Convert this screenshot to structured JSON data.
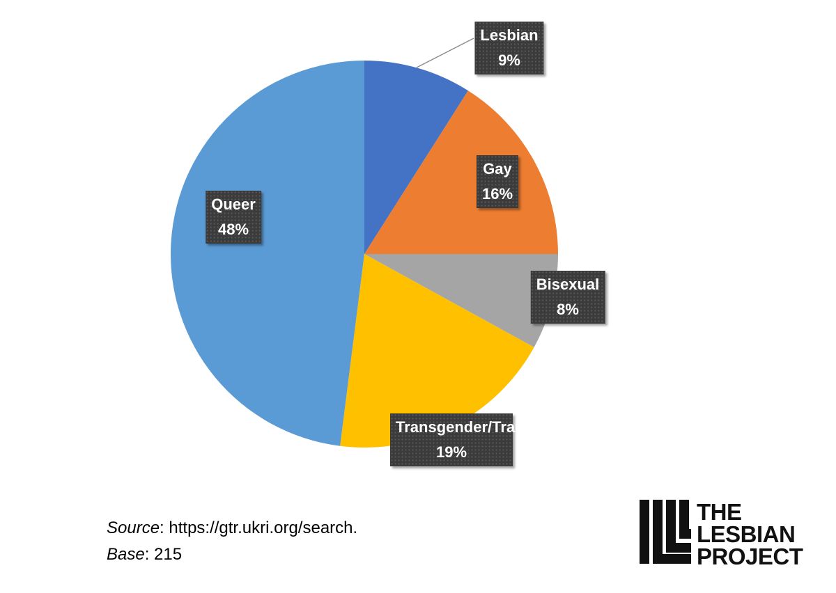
{
  "chart_data": {
    "type": "pie",
    "categories": [
      "Lesbian",
      "Gay",
      "Bisexual",
      "Transgender/Trans",
      "Queer"
    ],
    "values": [
      9,
      16,
      8,
      19,
      48
    ],
    "value_labels": [
      "9%",
      "16%",
      "8%",
      "19%",
      "48%"
    ],
    "colors": [
      "#4472c4",
      "#ed7d31",
      "#a5a5a5",
      "#ffc000",
      "#5b9bd5"
    ]
  },
  "footer": {
    "source_label": "Source",
    "source": ": https://gtr.ukri.org/search.",
    "base_label": "Base",
    "base": ": 215"
  },
  "logo": {
    "lines": [
      "THE",
      "LESBIAN",
      "PROJECT"
    ]
  }
}
